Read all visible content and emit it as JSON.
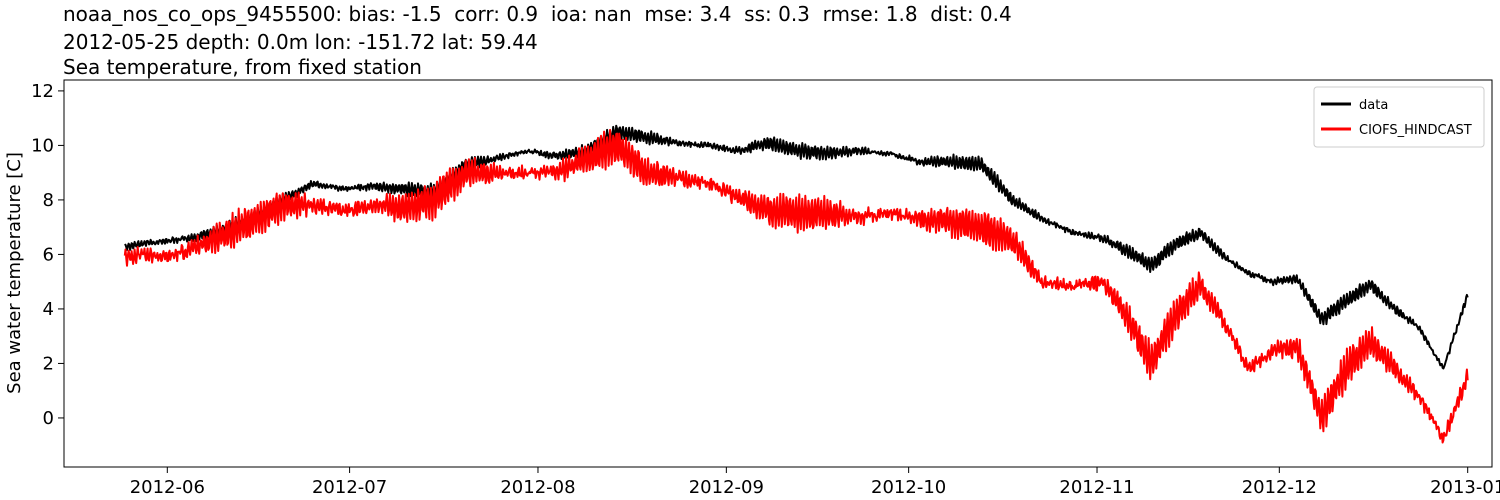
{
  "chart_data": {
    "type": "line",
    "title_lines": [
      "noaa_nos_co_ops_9455500: bias: -1.5  corr: 0.9  ioa: nan  mse: 3.4  ss: 0.3  rmse: 1.8  dist: 0.4",
      "2012-05-25 depth: 0.0m lon: -151.72 lat: 59.44",
      "Sea temperature, from fixed station"
    ],
    "xlabel": "",
    "ylabel": "Sea water temperature [C]",
    "xlim": [
      "2012-05-15",
      "2013-01-05"
    ],
    "ylim": [
      -1.8,
      12.4
    ],
    "x_ticks": [
      "2012-06",
      "2012-07",
      "2012-08",
      "2012-09",
      "2012-10",
      "2012-11",
      "2012-12",
      "2013-01"
    ],
    "y_ticks": [
      0,
      2,
      4,
      6,
      8,
      10,
      12
    ],
    "legend_position": "top-right",
    "grid": false,
    "series": [
      {
        "name": "data",
        "color": "#000000",
        "x": [
          "2012-05-25",
          "2012-05-28",
          "2012-06-01",
          "2012-06-05",
          "2012-06-10",
          "2012-06-15",
          "2012-06-20",
          "2012-06-25",
          "2012-06-30",
          "2012-07-05",
          "2012-07-10",
          "2012-07-15",
          "2012-07-20",
          "2012-07-25",
          "2012-07-30",
          "2012-08-04",
          "2012-08-09",
          "2012-08-14",
          "2012-08-19",
          "2012-08-24",
          "2012-08-29",
          "2012-09-03",
          "2012-09-08",
          "2012-09-13",
          "2012-09-18",
          "2012-09-23",
          "2012-09-28",
          "2012-10-03",
          "2012-10-08",
          "2012-10-13",
          "2012-10-18",
          "2012-10-23",
          "2012-10-28",
          "2012-11-02",
          "2012-11-06",
          "2012-11-10",
          "2012-11-14",
          "2012-11-18",
          "2012-11-22",
          "2012-11-26",
          "2012-11-30",
          "2012-12-04",
          "2012-12-08",
          "2012-12-12",
          "2012-12-16",
          "2012-12-20",
          "2012-12-24",
          "2012-12-28",
          "2013-01-01"
        ],
        "values": [
          6.3,
          6.4,
          6.5,
          6.6,
          6.9,
          7.3,
          8.0,
          8.6,
          8.4,
          8.5,
          8.4,
          8.3,
          9.3,
          9.5,
          9.8,
          9.6,
          9.8,
          10.5,
          10.3,
          10.1,
          10.0,
          9.8,
          10.1,
          9.8,
          9.7,
          9.8,
          9.7,
          9.4,
          9.4,
          9.3,
          8.0,
          7.3,
          6.8,
          6.6,
          6.1,
          5.6,
          6.4,
          6.8,
          5.9,
          5.3,
          5.0,
          5.1,
          3.6,
          4.3,
          4.9,
          4.0,
          3.3,
          1.8,
          4.5
        ],
        "noise": 0.25
      },
      {
        "name": "CIOFS_HINDCAST",
        "color": "#ff0000",
        "x": [
          "2012-05-25",
          "2012-05-28",
          "2012-06-01",
          "2012-06-05",
          "2012-06-10",
          "2012-06-15",
          "2012-06-20",
          "2012-06-25",
          "2012-06-30",
          "2012-07-05",
          "2012-07-10",
          "2012-07-15",
          "2012-07-20",
          "2012-07-25",
          "2012-07-30",
          "2012-08-04",
          "2012-08-09",
          "2012-08-14",
          "2012-08-19",
          "2012-08-24",
          "2012-08-29",
          "2012-09-03",
          "2012-09-08",
          "2012-09-13",
          "2012-09-18",
          "2012-09-23",
          "2012-09-28",
          "2012-10-03",
          "2012-10-08",
          "2012-10-13",
          "2012-10-18",
          "2012-10-23",
          "2012-10-28",
          "2012-11-02",
          "2012-11-06",
          "2012-11-10",
          "2012-11-14",
          "2012-11-18",
          "2012-11-22",
          "2012-11-26",
          "2012-11-30",
          "2012-12-04",
          "2012-12-08",
          "2012-12-12",
          "2012-12-16",
          "2012-12-20",
          "2012-12-24",
          "2012-12-28",
          "2013-01-01"
        ],
        "values": [
          5.9,
          6.0,
          5.9,
          6.2,
          6.7,
          7.2,
          7.8,
          7.8,
          7.6,
          7.8,
          7.7,
          8.0,
          9.0,
          9.0,
          9.0,
          9.0,
          9.5,
          10.0,
          9.0,
          8.8,
          8.6,
          8.1,
          7.6,
          7.5,
          7.5,
          7.4,
          7.5,
          7.3,
          7.2,
          7.0,
          6.5,
          5.0,
          4.8,
          5.0,
          3.7,
          2.0,
          3.8,
          4.9,
          3.5,
          1.8,
          2.5,
          2.6,
          0.0,
          1.8,
          2.8,
          1.8,
          0.8,
          -0.8,
          1.5
        ],
        "noise": 0.6
      }
    ]
  }
}
